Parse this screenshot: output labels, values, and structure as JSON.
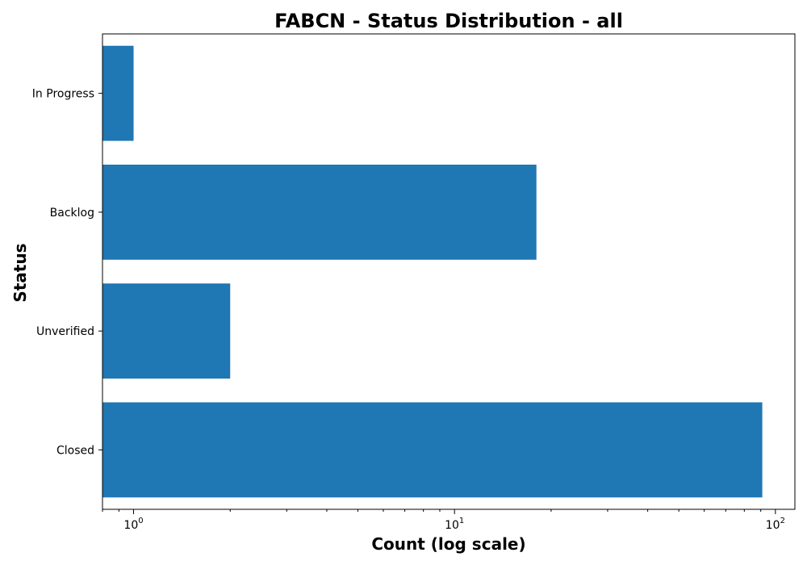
{
  "chart_data": {
    "type": "bar",
    "orientation": "horizontal",
    "title": "FABCN - Status Distribution - all",
    "xlabel": "Count (log scale)",
    "ylabel": "Status",
    "x_scale": "log",
    "xlim": [
      0.8,
      115
    ],
    "categories": [
      "In Progress",
      "Backlog",
      "Unverified",
      "Closed"
    ],
    "values": [
      1,
      18,
      2,
      91
    ],
    "x_major_ticks": [
      {
        "base": "10",
        "exp": "0",
        "value": 1
      },
      {
        "base": "10",
        "exp": "1",
        "value": 10
      },
      {
        "base": "10",
        "exp": "2",
        "value": 100
      }
    ],
    "bar_color": "#1f77b4",
    "grid": false,
    "legend": "none"
  }
}
